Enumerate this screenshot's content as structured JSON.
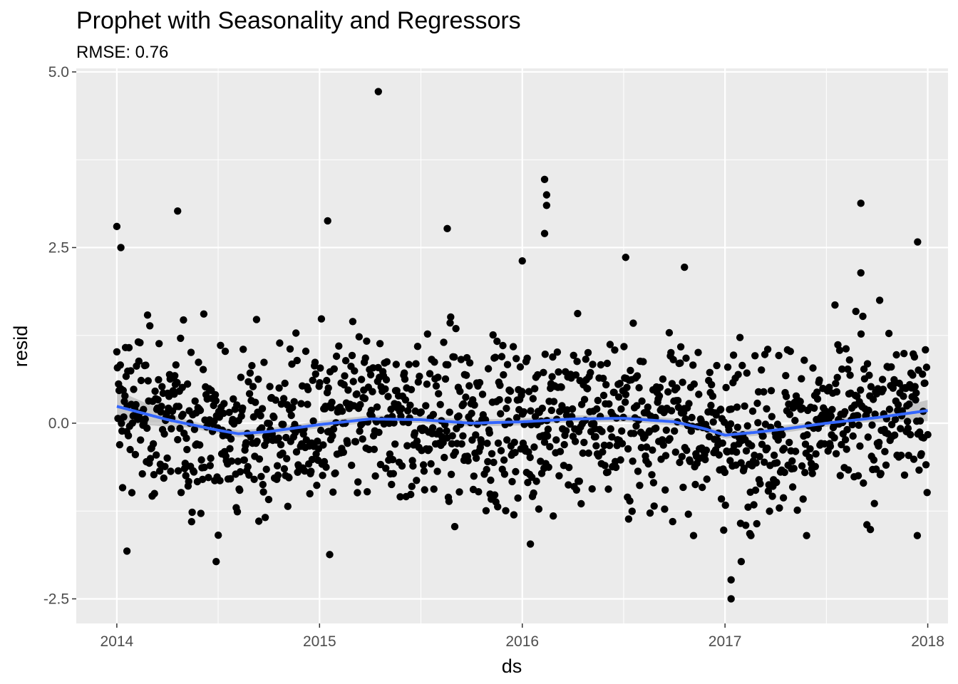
{
  "chart_data": {
    "type": "scatter",
    "title": "Prophet with Seasonality and Regressors",
    "subtitle": "RMSE: 0.76",
    "xlabel": "ds",
    "ylabel": "resid",
    "xlim": [
      2013.8,
      2018.1
    ],
    "ylim": [
      -2.85,
      5.05
    ],
    "x_ticks": [
      2014,
      2015,
      2016,
      2017,
      2018
    ],
    "x_tick_labels": [
      "2014",
      "2015",
      "2016",
      "2017",
      "2018"
    ],
    "y_ticks": [
      -2.5,
      0,
      2.5,
      5
    ],
    "y_tick_labels": [
      "-2.5",
      "0.0",
      "2.5",
      "5.0"
    ],
    "grid": true,
    "point_color": "#000000",
    "smooth_color": "#3366FF",
    "band_color": "#999999",
    "panel_background": "#EBEBEB",
    "notable_points": [
      [
        2015.29,
        4.72
      ],
      [
        2014.0,
        2.8
      ],
      [
        2014.3,
        3.02
      ],
      [
        2014.02,
        2.5
      ],
      [
        2015.04,
        2.88
      ],
      [
        2016.11,
        3.47
      ],
      [
        2016.12,
        3.25
      ],
      [
        2016.12,
        3.1
      ],
      [
        2016.11,
        2.7
      ],
      [
        2017.67,
        3.13
      ],
      [
        2017.95,
        2.58
      ],
      [
        2015.63,
        2.77
      ],
      [
        2016.51,
        2.36
      ],
      [
        2016.0,
        2.31
      ],
      [
        2016.8,
        2.22
      ],
      [
        2017.67,
        2.14
      ],
      [
        2014.05,
        -1.82
      ],
      [
        2014.49,
        -1.97
      ],
      [
        2015.05,
        -1.87
      ],
      [
        2017.03,
        -2.5
      ],
      [
        2017.03,
        -2.23
      ],
      [
        2016.04,
        -1.72
      ],
      [
        2017.08,
        -1.97
      ]
    ],
    "smooth_line": {
      "x": [
        2014.0,
        2014.25,
        2014.5,
        2014.6,
        2014.75,
        2015.0,
        2015.25,
        2015.5,
        2015.75,
        2016.0,
        2016.25,
        2016.5,
        2016.75,
        2016.9,
        2017.0,
        2017.15,
        2017.3,
        2017.5,
        2017.75,
        2018.0
      ],
      "y": [
        0.24,
        0.05,
        -0.1,
        -0.15,
        -0.12,
        -0.02,
        0.06,
        0.05,
        0.0,
        0.02,
        0.06,
        0.07,
        0.02,
        -0.08,
        -0.17,
        -0.13,
        -0.08,
        0.0,
        0.08,
        0.18
      ]
    }
  }
}
